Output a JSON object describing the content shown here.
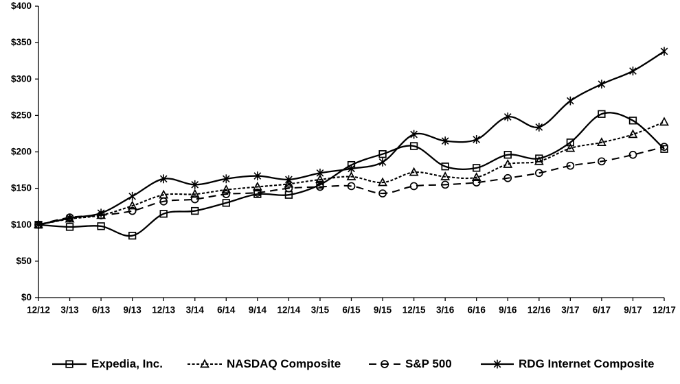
{
  "chart_data": {
    "type": "line",
    "title": "",
    "xlabel": "",
    "ylabel": "",
    "ylim": [
      0,
      400
    ],
    "ytick_step": 50,
    "ytick_labels": [
      "$0",
      "$50",
      "$100",
      "$150",
      "$200",
      "$250",
      "$300",
      "$350",
      "$400"
    ],
    "grid": false,
    "smooth_lines": true,
    "legend_position": "bottom",
    "colors": {
      "line": "#000000",
      "text": "#000000",
      "background": "#ffffff"
    },
    "categories": [
      "12/12",
      "3/13",
      "6/13",
      "9/13",
      "12/13",
      "3/14",
      "6/14",
      "9/14",
      "12/14",
      "3/15",
      "6/15",
      "9/15",
      "12/15",
      "3/16",
      "6/16",
      "9/16",
      "12/16",
      "3/17",
      "6/17",
      "9/17",
      "12/17"
    ],
    "series": [
      {
        "name": "Expedia, Inc.",
        "marker": "square",
        "line_style": "solid",
        "values": [
          100,
          97,
          98,
          85,
          115,
          119,
          130,
          142,
          141,
          155,
          182,
          197,
          208,
          180,
          178,
          196,
          191,
          213,
          252,
          243,
          204
        ]
      },
      {
        "name": "NASDAQ Composite",
        "marker": "triangle",
        "line_style": "short-dash",
        "values": [
          100,
          108,
          113,
          126,
          141,
          142,
          148,
          152,
          156,
          162,
          166,
          158,
          172,
          166,
          165,
          183,
          187,
          205,
          213,
          224,
          241
        ]
      },
      {
        "name": "S&P 500",
        "marker": "circle",
        "line_style": "long-dash",
        "values": [
          100,
          110,
          113,
          119,
          132,
          135,
          142,
          144,
          150,
          152,
          153,
          143,
          153,
          155,
          158,
          164,
          171,
          181,
          187,
          196,
          207
        ]
      },
      {
        "name": "RDG Internet Composite",
        "marker": "asterisk",
        "line_style": "solid",
        "values": [
          100,
          109,
          116,
          139,
          163,
          155,
          163,
          167,
          162,
          171,
          177,
          186,
          224,
          215,
          217,
          248,
          234,
          270,
          293,
          311,
          338
        ]
      }
    ]
  }
}
